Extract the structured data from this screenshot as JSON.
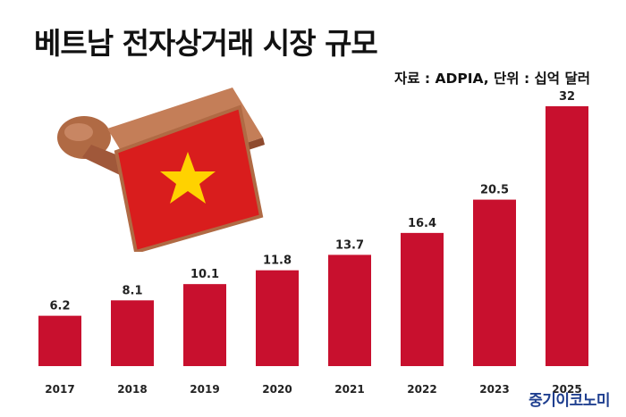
{
  "title": "베트남 전자상거래 시장 규모",
  "source_unit": "자료 : ADPIA, 단위 : 십억 달러",
  "watermark": "중기이코노미",
  "colors": {
    "bar": "#c8102e",
    "stamp_flag": "#d91d1d",
    "stamp_star": "#ffd200",
    "stamp_wood": "#b8704a"
  },
  "icons": {
    "illustration": "vietnam-flag-stamp-icon"
  },
  "chart_data": {
    "type": "bar",
    "categories": [
      "2017",
      "2018",
      "2019",
      "2020",
      "2021",
      "2022",
      "2023",
      "2025"
    ],
    "values": [
      6.2,
      8.1,
      10.1,
      11.8,
      13.7,
      16.4,
      20.5,
      32
    ],
    "value_labels": [
      "6.2",
      "8.1",
      "10.1",
      "11.8",
      "13.7",
      "16.4",
      "20.5",
      "32"
    ],
    "title": "베트남 전자상거래 시장 규모",
    "ylim": [
      0,
      32
    ],
    "grid": false,
    "legend": "none"
  }
}
